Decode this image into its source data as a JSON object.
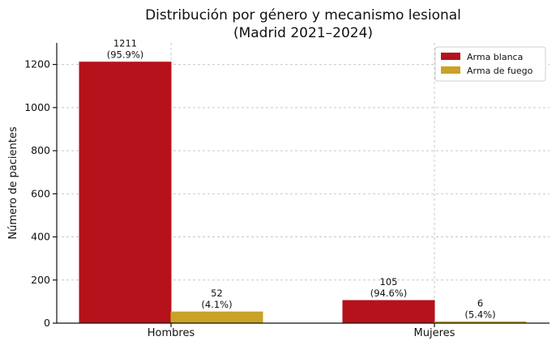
{
  "chart_data": {
    "type": "bar",
    "title_lines": [
      "Distribución por género y mecanismo lesional",
      "(Madrid 2021–2024)"
    ],
    "xlabel": "",
    "ylabel": "Número de pacientes",
    "categories": [
      "Hombres",
      "Mujeres"
    ],
    "ylim": [
      0,
      1300
    ],
    "yticks": [
      0,
      200,
      400,
      600,
      800,
      1000,
      1200
    ],
    "grid": true,
    "legend_position": "top-right",
    "series": [
      {
        "name": "Arma blanca",
        "color": "#b5121b",
        "values": [
          1211,
          105
        ],
        "labels": [
          [
            "1211",
            "(95.9%)"
          ],
          [
            "105",
            "(94.6%)"
          ]
        ]
      },
      {
        "name": "Arma de fuego",
        "color": "#c9a227",
        "values": [
          52,
          6
        ],
        "labels": [
          [
            "52",
            "(4.1%)"
          ],
          [
            "6",
            "(5.4%)"
          ]
        ]
      }
    ]
  }
}
